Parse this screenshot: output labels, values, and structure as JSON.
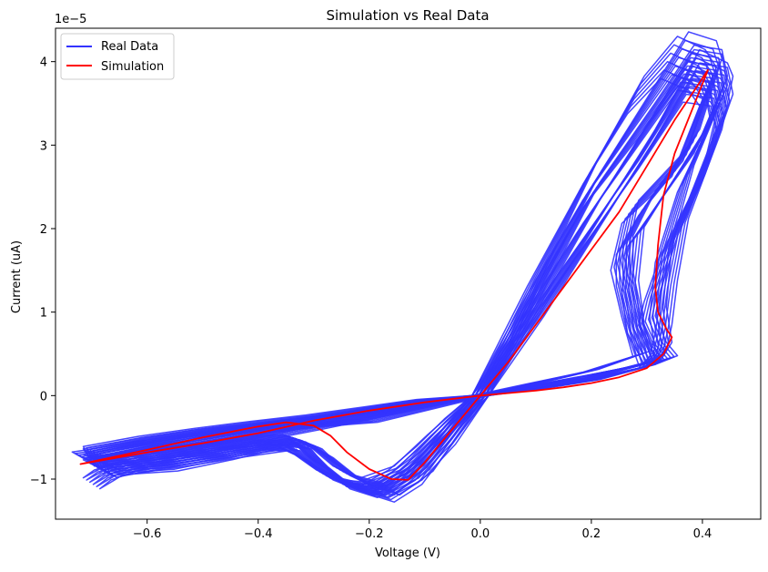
{
  "chart_data": {
    "type": "line",
    "title": "Simulation vs Real Data",
    "xlabel": "Voltage (V)",
    "ylabel": "Current (uA)",
    "y_offset_text": "1e−5",
    "xlim": [
      -0.765,
      0.505
    ],
    "ylim": [
      -1.48e-05,
      4.4e-05
    ],
    "x_ticks": [
      -0.6,
      -0.4,
      -0.2,
      0.0,
      0.2,
      0.4
    ],
    "x_tick_labels": [
      "−0.6",
      "−0.4",
      "−0.2",
      "0.0",
      "0.2",
      "0.4"
    ],
    "y_ticks": [
      -1e-05,
      0,
      1e-05,
      2e-05,
      3e-05,
      4e-05
    ],
    "y_tick_labels": [
      "−1",
      "0",
      "1",
      "2",
      "3",
      "4"
    ],
    "grid": false,
    "legend_position": "top-left",
    "colors": {
      "real": "#3333ff",
      "simulation": "#ff0000"
    },
    "series": [
      {
        "name": "Real Data",
        "color": "#3333ff",
        "cycles": [
          {
            "x": [
              0.0,
              0.1,
              0.2,
              0.3,
              0.38,
              0.43,
              0.44,
              0.42,
              0.36,
              0.34,
              0.33,
              0.32,
              0.3,
              0.2,
              0.1,
              0.0,
              -0.1,
              -0.2,
              -0.3,
              -0.4,
              -0.5,
              -0.6,
              -0.7,
              -0.72,
              -0.7,
              -0.6,
              -0.5,
              -0.4,
              -0.32,
              -0.3,
              -0.25,
              -0.2,
              -0.15,
              -0.1,
              -0.05,
              0.0
            ],
            "y": [
              0.0,
              1e-05,
              2e-05,
              3e-05,
              3.9e-05,
              3.75e-05,
              3.6e-05,
              3e-05,
              2e-05,
              1.3e-05,
              8e-06,
              5e-06,
              3.5e-06,
              2e-06,
              1e-06,
              0.0,
              -1e-06,
              -2e-06,
              -2.8e-06,
              -3.8e-06,
              -4.8e-06,
              -5.8e-06,
              -7e-06,
              -7.2e-06,
              -8e-06,
              -7.2e-06,
              -6.2e-06,
              -5.5e-06,
              -6e-06,
              -7.5e-06,
              -1.05e-05,
              -1.15e-05,
              -9.5e-06,
              -6.5e-06,
              -3e-06,
              0.0
            ]
          },
          {
            "x": [
              0.0,
              0.1,
              0.2,
              0.3,
              0.36,
              0.41,
              0.42,
              0.38,
              0.3,
              0.26,
              0.26,
              0.28,
              0.3,
              0.2,
              0.1,
              0.0,
              -0.1,
              -0.2,
              -0.3,
              -0.4,
              -0.5,
              -0.6,
              -0.68,
              -0.7,
              -0.66,
              -0.55,
              -0.45,
              -0.36,
              -0.32,
              -0.28,
              -0.22,
              -0.17,
              -0.12,
              -0.06,
              0.0
            ],
            "y": [
              0.0,
              1.3e-05,
              2.5e-05,
              3.5e-05,
              4.1e-05,
              4e-05,
              3.8e-05,
              3e-05,
              2.3e-05,
              1.8e-05,
              1.4e-05,
              8e-06,
              4e-06,
              2.2e-06,
              1e-06,
              0.0,
              -1.2e-06,
              -2.5e-06,
              -3.8e-06,
              -5e-06,
              -6.2e-06,
              -7.8e-06,
              -9.5e-06,
              -1.05e-05,
              -9e-06,
              -8e-06,
              -7e-06,
              -6.2e-06,
              -7.5e-06,
              -9.5e-06,
              -1.1e-05,
              -1.2e-05,
              -1e-05,
              -5e-06,
              0.0
            ]
          },
          {
            "x": [
              0.0,
              0.1,
              0.2,
              0.3,
              0.37,
              0.42,
              0.43,
              0.37,
              0.33,
              0.32,
              0.33,
              0.31,
              0.2,
              0.1,
              0.0,
              -0.1,
              -0.2,
              -0.3,
              -0.4,
              -0.5,
              -0.6,
              -0.7,
              -0.66,
              -0.55,
              -0.45,
              -0.38,
              -0.33,
              -0.28,
              -0.22,
              -0.16,
              -0.1,
              -0.05,
              0.0
            ],
            "y": [
              0.0,
              1.1e-05,
              2.2e-05,
              3.2e-05,
              3.9e-05,
              3.85e-05,
              3.5e-05,
              2.6e-05,
              1.7e-05,
              1e-05,
              6e-06,
              4e-06,
              2.5e-06,
              1.2e-06,
              0.0,
              -1.5e-06,
              -3e-06,
              -3.5e-06,
              -4.2e-06,
              -5.2e-06,
              -6.2e-06,
              -7.5e-06,
              -8.5e-06,
              -7.5e-06,
              -6.6e-06,
              -5.8e-06,
              -5.2e-06,
              -7e-06,
              -1e-05,
              -1.12e-05,
              -8.5e-06,
              -4e-06,
              0.0
            ]
          },
          {
            "x": [
              0.0,
              0.1,
              0.2,
              0.28,
              0.34,
              0.39,
              0.41,
              0.36,
              0.27,
              0.25,
              0.27,
              0.29,
              0.2,
              0.1,
              0.0,
              -0.1,
              -0.2,
              -0.3,
              -0.4,
              -0.5,
              -0.6,
              -0.7,
              -0.68,
              -0.56,
              -0.46,
              -0.38,
              -0.33,
              -0.29,
              -0.24,
              -0.18,
              -0.12,
              -0.06,
              0.0
            ],
            "y": [
              0.0,
              1.4e-05,
              2.7e-05,
              3.6e-05,
              4.05e-05,
              3.9e-05,
              3.7e-05,
              2.8e-05,
              2.2e-05,
              1.6e-05,
              1e-05,
              5e-06,
              3e-06,
              1.5e-06,
              0.0,
              -5e-07,
              -1.5e-06,
              -2.5e-06,
              -3.3e-06,
              -4.2e-06,
              -5.2e-06,
              -6.5e-06,
              -9e-06,
              -8.5e-06,
              -7.2e-06,
              -6e-06,
              -5.5e-06,
              -8e-06,
              -1.05e-05,
              -1.15e-05,
              -9.5e-06,
              -5.5e-06,
              0.0
            ]
          },
          {
            "x": [
              0.0,
              0.1,
              0.2,
              0.3,
              0.38,
              0.43,
              0.44,
              0.39,
              0.34,
              0.31,
              0.3,
              0.32,
              0.34,
              0.3,
              0.2,
              0.1,
              0.0,
              -0.1,
              -0.2,
              -0.3,
              -0.4,
              -0.5,
              -0.6,
              -0.7,
              -0.69,
              -0.58,
              -0.48,
              -0.4,
              -0.34,
              -0.3,
              -0.25,
              -0.2,
              -0.14,
              -0.08,
              0.0
            ],
            "y": [
              0.0,
              9e-06,
              1.9e-05,
              2.9e-05,
              3.75e-05,
              3.7e-05,
              3.4e-05,
              2.5e-05,
              1.8e-05,
              1.2e-05,
              9e-06,
              6e-06,
              4.5e-06,
              3.5e-06,
              1.8e-06,
              8e-07,
              0.0,
              -8e-07,
              -1.8e-06,
              -2.8e-06,
              -3.6e-06,
              -4.4e-06,
              -5.5e-06,
              -6.8e-06,
              -7.8e-06,
              -6.8e-06,
              -6e-06,
              -5.2e-06,
              -5e-06,
              -6e-06,
              -9e-06,
              -1.05e-05,
              -9e-06,
              -5e-06,
              0.0
            ]
          },
          {
            "x": [
              0.0,
              0.1,
              0.2,
              0.3,
              0.37,
              0.42,
              0.43,
              0.4,
              0.33,
              0.28,
              0.27,
              0.28,
              0.31,
              0.2,
              0.1,
              0.0,
              -0.1,
              -0.2,
              -0.3,
              -0.4,
              -0.5,
              -0.6,
              -0.7,
              -0.67,
              -0.57,
              -0.47,
              -0.39,
              -0.34,
              -0.29,
              -0.23,
              -0.17,
              -0.11,
              -0.05,
              0.0
            ],
            "y": [
              0.0,
              1.2e-05,
              2.4e-05,
              3.3e-05,
              3.95e-05,
              3.9e-05,
              3.6e-05,
              3.1e-05,
              2.4e-05,
              1.9e-05,
              1.3e-05,
              8e-06,
              4e-06,
              2.2e-06,
              1.1e-06,
              0.0,
              -1e-06,
              -2.2e-06,
              -3.3e-06,
              -4.5e-06,
              -5.6e-06,
              -6.8e-06,
              -8.2e-06,
              -9.2e-06,
              -8e-06,
              -7e-06,
              -6.2e-06,
              -6.2e-06,
              -8.8e-06,
              -1.08e-05,
              -1.12e-05,
              -8e-06,
              -3.5e-06,
              0.0
            ]
          }
        ]
      },
      {
        "name": "Simulation",
        "color": "#ff0000",
        "x": [
          0.0,
          0.05,
          0.1,
          0.15,
          0.2,
          0.25,
          0.3,
          0.35,
          0.4,
          0.41,
          0.38,
          0.35,
          0.33,
          0.32,
          0.315,
          0.32,
          0.335,
          0.345,
          0.33,
          0.3,
          0.25,
          0.2,
          0.15,
          0.1,
          0.05,
          0.0,
          -0.1,
          -0.2,
          -0.3,
          -0.4,
          -0.5,
          -0.6,
          -0.72,
          -0.6,
          -0.5,
          -0.4,
          -0.35,
          -0.3,
          -0.27,
          -0.24,
          -0.2,
          -0.16,
          -0.13,
          -0.1,
          -0.05,
          0.0
        ],
        "y": [
          0.0,
          4e-06,
          8.5e-06,
          1.3e-05,
          1.75e-05,
          2.2e-05,
          2.75e-05,
          3.3e-05,
          3.8e-05,
          3.9e-05,
          3.4e-05,
          2.9e-05,
          2.4e-05,
          1.8e-05,
          1.3e-05,
          1e-05,
          8e-06,
          7e-06,
          5e-06,
          3.3e-06,
          2.2e-06,
          1.5e-06,
          1e-06,
          6e-07,
          3e-07,
          0.0,
          -8e-07,
          -1.8e-06,
          -3e-06,
          -4.5e-06,
          -5.7e-06,
          -6.8e-06,
          -8.2e-06,
          -6.5e-06,
          -5e-06,
          -3.7e-06,
          -3.2e-06,
          -3.6e-06,
          -4.8e-06,
          -6.8e-06,
          -8.8e-06,
          -1e-05,
          -1.01e-05,
          -8e-06,
          -4e-06,
          0.0
        ]
      }
    ]
  }
}
